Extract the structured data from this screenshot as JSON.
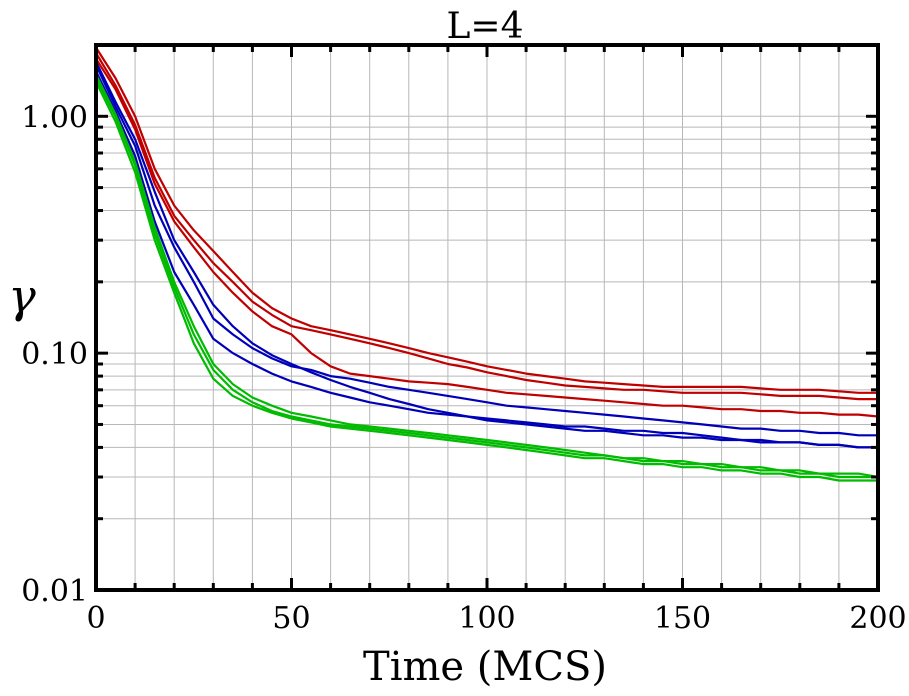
{
  "chart_data": {
    "type": "line",
    "title": "L=4",
    "xlabel": "Time (MCS)",
    "ylabel": "γ",
    "xlim": [
      0,
      200
    ],
    "ylim": [
      0.01,
      2.0
    ],
    "yscale": "log",
    "grid": true,
    "legend": "none",
    "x_ticks": [
      0,
      50,
      100,
      150,
      200
    ],
    "x_tick_labels": [
      "0",
      "50",
      "100",
      "150",
      "200"
    ],
    "y_ticks": [
      0.01,
      0.1,
      1.0
    ],
    "y_tick_labels": [
      "0.01",
      "0.10",
      "1.00"
    ],
    "colors": {
      "red": "#c00000",
      "blue": "#0000b8",
      "green": "#00bb00"
    },
    "series": [
      {
        "color": "red",
        "x": [
          0,
          5,
          10,
          15,
          20,
          25,
          30,
          35,
          40,
          45,
          50,
          55,
          60,
          65,
          70,
          75,
          80,
          85,
          90,
          95,
          100,
          105,
          110,
          115,
          120,
          125,
          130,
          135,
          140,
          145,
          150,
          155,
          160,
          165,
          170,
          175,
          180,
          185,
          190,
          195,
          200
        ],
        "values": [
          1.95,
          1.45,
          1.0,
          0.6,
          0.42,
          0.33,
          0.27,
          0.22,
          0.18,
          0.155,
          0.14,
          0.13,
          0.125,
          0.12,
          0.115,
          0.11,
          0.105,
          0.1,
          0.096,
          0.092,
          0.088,
          0.085,
          0.082,
          0.08,
          0.078,
          0.076,
          0.075,
          0.074,
          0.073,
          0.072,
          0.072,
          0.072,
          0.072,
          0.072,
          0.071,
          0.07,
          0.07,
          0.07,
          0.069,
          0.068,
          0.068
        ]
      },
      {
        "color": "red",
        "x": [
          0,
          5,
          10,
          15,
          20,
          25,
          30,
          35,
          40,
          45,
          50,
          55,
          60,
          65,
          70,
          75,
          80,
          85,
          90,
          95,
          100,
          105,
          110,
          115,
          120,
          125,
          130,
          135,
          140,
          145,
          150,
          155,
          160,
          165,
          170,
          175,
          180,
          185,
          190,
          195,
          200
        ],
        "values": [
          1.85,
          1.35,
          0.92,
          0.55,
          0.38,
          0.3,
          0.24,
          0.2,
          0.165,
          0.145,
          0.13,
          0.125,
          0.12,
          0.115,
          0.11,
          0.105,
          0.1,
          0.095,
          0.09,
          0.087,
          0.083,
          0.08,
          0.077,
          0.075,
          0.073,
          0.072,
          0.071,
          0.07,
          0.07,
          0.069,
          0.068,
          0.068,
          0.068,
          0.068,
          0.067,
          0.066,
          0.066,
          0.066,
          0.065,
          0.064,
          0.064
        ]
      },
      {
        "color": "red",
        "x": [
          0,
          5,
          10,
          15,
          20,
          25,
          30,
          35,
          40,
          45,
          50,
          55,
          60,
          65,
          70,
          75,
          80,
          85,
          90,
          95,
          100,
          105,
          110,
          115,
          120,
          125,
          130,
          135,
          140,
          145,
          150,
          155,
          160,
          165,
          170,
          175,
          180,
          185,
          190,
          195,
          200
        ],
        "values": [
          1.75,
          1.3,
          0.88,
          0.52,
          0.36,
          0.28,
          0.22,
          0.18,
          0.15,
          0.13,
          0.12,
          0.1,
          0.088,
          0.082,
          0.08,
          0.078,
          0.076,
          0.075,
          0.074,
          0.072,
          0.07,
          0.068,
          0.067,
          0.066,
          0.065,
          0.064,
          0.063,
          0.062,
          0.061,
          0.06,
          0.06,
          0.059,
          0.058,
          0.058,
          0.057,
          0.057,
          0.056,
          0.056,
          0.055,
          0.055,
          0.054
        ]
      },
      {
        "color": "blue",
        "x": [
          0,
          5,
          10,
          15,
          20,
          25,
          30,
          35,
          40,
          45,
          50,
          55,
          60,
          65,
          70,
          75,
          80,
          85,
          90,
          95,
          100,
          105,
          110,
          115,
          120,
          125,
          130,
          135,
          140,
          145,
          150,
          155,
          160,
          165,
          170,
          175,
          180,
          185,
          190,
          195,
          200
        ],
        "values": [
          1.65,
          1.1,
          0.75,
          0.42,
          0.28,
          0.2,
          0.14,
          0.12,
          0.105,
          0.095,
          0.088,
          0.085,
          0.08,
          0.078,
          0.075,
          0.072,
          0.07,
          0.068,
          0.066,
          0.064,
          0.062,
          0.06,
          0.059,
          0.058,
          0.057,
          0.056,
          0.055,
          0.054,
          0.053,
          0.052,
          0.051,
          0.05,
          0.049,
          0.048,
          0.048,
          0.047,
          0.047,
          0.046,
          0.046,
          0.045,
          0.045
        ]
      },
      {
        "color": "blue",
        "x": [
          0,
          5,
          10,
          15,
          20,
          25,
          30,
          35,
          40,
          45,
          50,
          55,
          60,
          65,
          70,
          75,
          80,
          85,
          90,
          95,
          100,
          105,
          110,
          115,
          120,
          125,
          130,
          135,
          140,
          145,
          150,
          155,
          160,
          165,
          170,
          175,
          180,
          185,
          190,
          195,
          200
        ],
        "values": [
          1.55,
          1.05,
          0.68,
          0.36,
          0.22,
          0.16,
          0.115,
          0.1,
          0.09,
          0.082,
          0.076,
          0.072,
          0.068,
          0.065,
          0.062,
          0.06,
          0.058,
          0.056,
          0.055,
          0.054,
          0.053,
          0.052,
          0.051,
          0.05,
          0.049,
          0.049,
          0.048,
          0.047,
          0.047,
          0.046,
          0.046,
          0.045,
          0.044,
          0.043,
          0.043,
          0.042,
          0.042,
          0.041,
          0.041,
          0.04,
          0.04
        ]
      },
      {
        "color": "blue",
        "x": [
          0,
          5,
          10,
          15,
          20,
          25,
          30,
          35,
          40,
          45,
          50,
          55,
          60,
          65,
          70,
          75,
          80,
          85,
          90,
          95,
          100,
          105,
          110,
          115,
          120,
          125,
          130,
          135,
          140,
          145,
          150,
          155,
          160,
          165,
          170,
          175,
          180,
          185,
          190,
          195,
          200
        ],
        "values": [
          1.7,
          1.15,
          0.8,
          0.48,
          0.3,
          0.22,
          0.16,
          0.13,
          0.11,
          0.098,
          0.09,
          0.083,
          0.077,
          0.072,
          0.068,
          0.064,
          0.061,
          0.058,
          0.056,
          0.054,
          0.052,
          0.051,
          0.05,
          0.049,
          0.048,
          0.047,
          0.047,
          0.046,
          0.045,
          0.045,
          0.044,
          0.044,
          0.043,
          0.043,
          0.042,
          0.042,
          0.042,
          0.041,
          0.041,
          0.04,
          0.04
        ]
      },
      {
        "color": "green",
        "x": [
          0,
          5,
          10,
          15,
          20,
          25,
          30,
          35,
          40,
          45,
          50,
          55,
          60,
          65,
          70,
          75,
          80,
          85,
          90,
          95,
          100,
          105,
          110,
          115,
          120,
          125,
          130,
          135,
          140,
          145,
          150,
          155,
          160,
          165,
          170,
          175,
          180,
          185,
          190,
          195,
          200
        ],
        "values": [
          1.45,
          1.0,
          0.62,
          0.32,
          0.19,
          0.12,
          0.085,
          0.07,
          0.062,
          0.057,
          0.054,
          0.052,
          0.05,
          0.049,
          0.048,
          0.047,
          0.046,
          0.045,
          0.044,
          0.043,
          0.042,
          0.041,
          0.04,
          0.039,
          0.038,
          0.037,
          0.037,
          0.036,
          0.035,
          0.035,
          0.034,
          0.034,
          0.033,
          0.033,
          0.032,
          0.032,
          0.031,
          0.031,
          0.03,
          0.03,
          0.03
        ]
      },
      {
        "color": "green",
        "x": [
          0,
          5,
          10,
          15,
          20,
          25,
          30,
          35,
          40,
          45,
          50,
          55,
          60,
          65,
          70,
          75,
          80,
          85,
          90,
          95,
          100,
          105,
          110,
          115,
          120,
          125,
          130,
          135,
          140,
          145,
          150,
          155,
          160,
          165,
          170,
          175,
          180,
          185,
          190,
          195,
          200
        ],
        "values": [
          1.4,
          0.95,
          0.58,
          0.3,
          0.18,
          0.11,
          0.078,
          0.066,
          0.06,
          0.056,
          0.053,
          0.051,
          0.049,
          0.048,
          0.047,
          0.046,
          0.045,
          0.044,
          0.043,
          0.042,
          0.041,
          0.04,
          0.039,
          0.038,
          0.037,
          0.036,
          0.036,
          0.035,
          0.034,
          0.034,
          0.033,
          0.033,
          0.032,
          0.032,
          0.031,
          0.031,
          0.03,
          0.03,
          0.029,
          0.029,
          0.029
        ]
      },
      {
        "color": "green",
        "x": [
          0,
          5,
          10,
          15,
          20,
          25,
          30,
          35,
          40,
          45,
          50,
          55,
          60,
          65,
          70,
          75,
          80,
          85,
          90,
          95,
          100,
          105,
          110,
          115,
          120,
          125,
          130,
          135,
          140,
          145,
          150,
          155,
          160,
          165,
          170,
          175,
          180,
          185,
          190,
          195,
          200
        ],
        "values": [
          1.5,
          1.02,
          0.64,
          0.34,
          0.2,
          0.13,
          0.09,
          0.074,
          0.065,
          0.06,
          0.056,
          0.054,
          0.052,
          0.05,
          0.049,
          0.048,
          0.047,
          0.046,
          0.045,
          0.044,
          0.043,
          0.042,
          0.041,
          0.04,
          0.039,
          0.038,
          0.037,
          0.036,
          0.036,
          0.035,
          0.035,
          0.034,
          0.034,
          0.033,
          0.033,
          0.032,
          0.032,
          0.031,
          0.031,
          0.031,
          0.03
        ]
      }
    ]
  }
}
